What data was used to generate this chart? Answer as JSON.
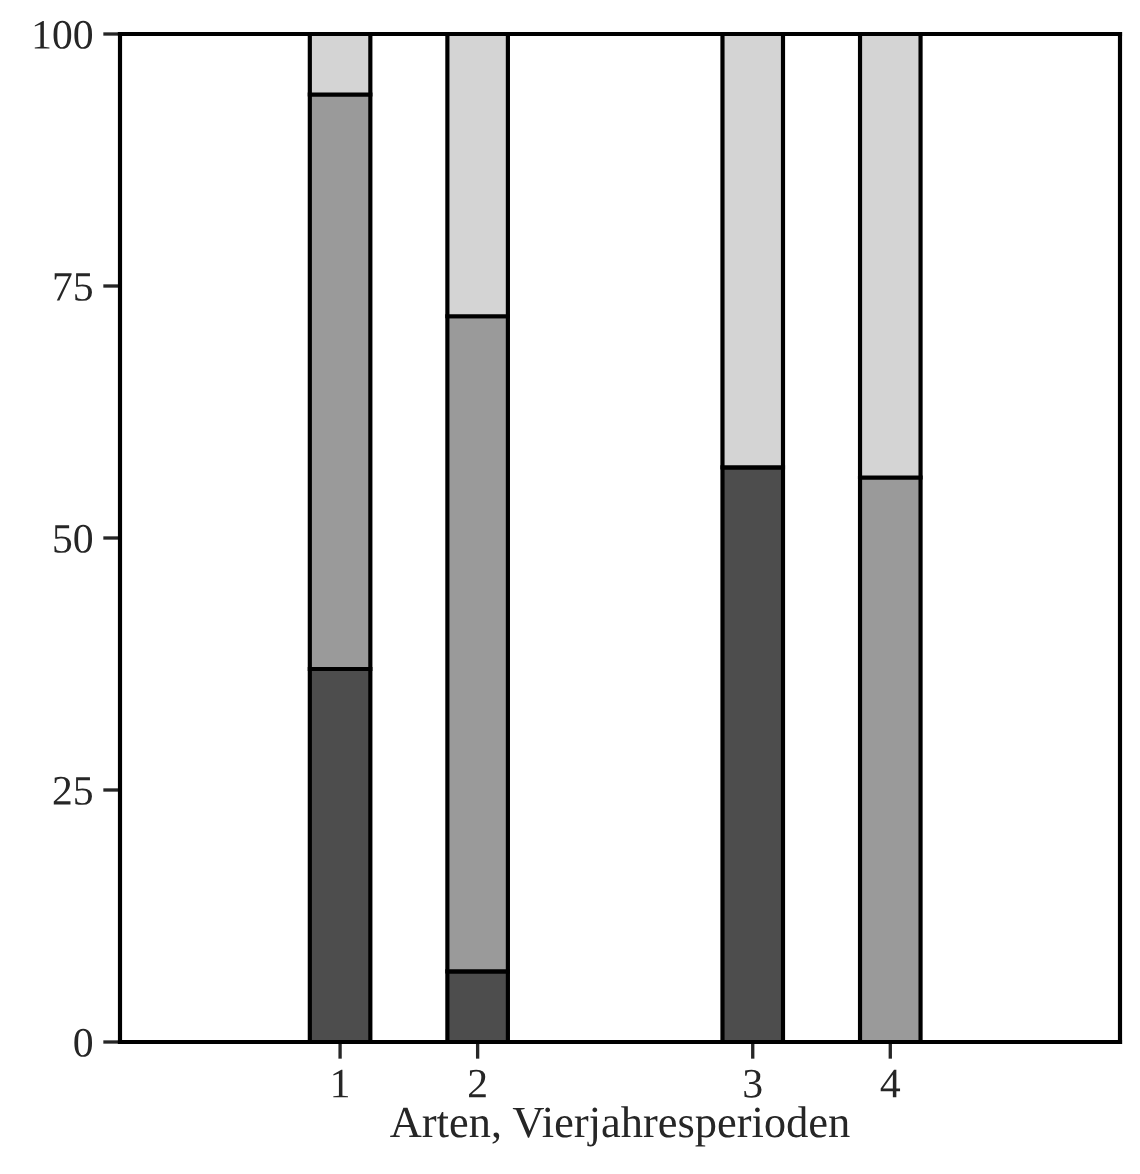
{
  "chart_data": {
    "type": "bar",
    "stacked": true,
    "xlabel": "Arten, Vierjahresperioden",
    "categories": [
      "1",
      "2",
      null,
      "3",
      "4"
    ],
    "series": [
      {
        "color": "#4d4d4d",
        "values": [
          37,
          7,
          null,
          57,
          null
        ]
      },
      {
        "color": "#9a9a9a",
        "values": [
          57,
          65,
          null,
          null,
          56
        ]
      },
      {
        "color": "#d4d4d4",
        "values": [
          6,
          28,
          null,
          43,
          44
        ]
      }
    ],
    "ylim": [
      0,
      100
    ],
    "yticks": [
      0,
      25,
      50,
      75,
      100
    ],
    "grid": false,
    "legend": false
  }
}
